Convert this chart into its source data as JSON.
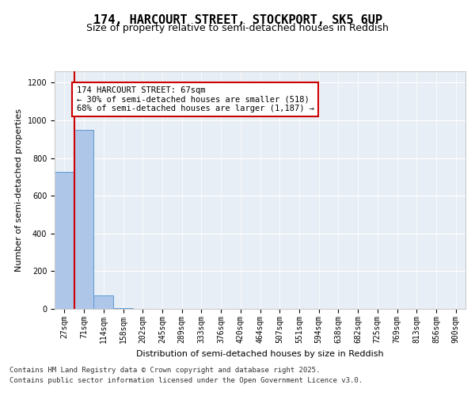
{
  "title": "174, HARCOURT STREET, STOCKPORT, SK5 6UP",
  "subtitle": "Size of property relative to semi-detached houses in Reddish",
  "xlabel": "Distribution of semi-detached houses by size in Reddish",
  "ylabel": "Number of semi-detached properties",
  "bar_labels": [
    "27sqm",
    "71sqm",
    "114sqm",
    "158sqm",
    "202sqm",
    "245sqm",
    "289sqm",
    "333sqm",
    "376sqm",
    "420sqm",
    "464sqm",
    "507sqm",
    "551sqm",
    "594sqm",
    "638sqm",
    "682sqm",
    "725sqm",
    "769sqm",
    "813sqm",
    "856sqm",
    "900sqm"
  ],
  "bar_values": [
    727,
    950,
    70,
    3,
    0,
    0,
    0,
    0,
    0,
    0,
    0,
    0,
    0,
    0,
    0,
    0,
    0,
    0,
    0,
    0,
    0
  ],
  "bar_color": "#aec6e8",
  "bar_edgecolor": "#5b9bd5",
  "ylim": [
    0,
    1260
  ],
  "yticks": [
    0,
    200,
    400,
    600,
    800,
    1000,
    1200
  ],
  "red_line_color": "#cc0000",
  "annotation_title": "174 HARCOURT STREET: 67sqm",
  "annotation_line1": "← 30% of semi-detached houses are smaller (518)",
  "annotation_line2": "68% of semi-detached houses are larger (1,187) →",
  "annotation_box_color": "#cc0000",
  "background_color": "#e8eef5",
  "grid_color": "#ffffff",
  "footer_line1": "Contains HM Land Registry data © Crown copyright and database right 2025.",
  "footer_line2": "Contains public sector information licensed under the Open Government Licence v3.0.",
  "title_fontsize": 11,
  "subtitle_fontsize": 9,
  "axis_label_fontsize": 8,
  "tick_fontsize": 7,
  "annotation_fontsize": 7.5,
  "footer_fontsize": 6.5
}
